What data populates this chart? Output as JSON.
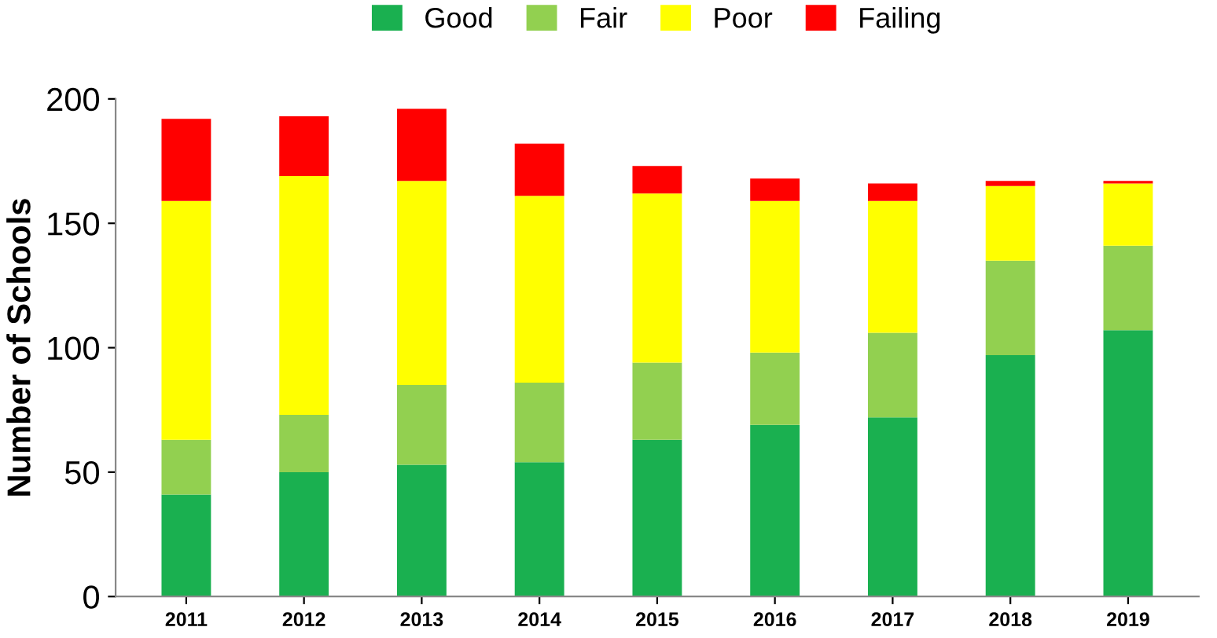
{
  "chart_data": {
    "type": "bar",
    "stacked": true,
    "ylabel": "Number of Schools",
    "categories": [
      "2011",
      "2012",
      "2013",
      "2014",
      "2015",
      "2016",
      "2017",
      "2018",
      "2019"
    ],
    "series": [
      {
        "name": "Good",
        "color": "#1ab050",
        "values": [
          41,
          50,
          53,
          54,
          63,
          69,
          72,
          97,
          107
        ]
      },
      {
        "name": "Fair",
        "color": "#92d050",
        "values": [
          22,
          23,
          32,
          32,
          31,
          29,
          34,
          38,
          34
        ]
      },
      {
        "name": "Poor",
        "color": "#ffff00",
        "values": [
          96,
          96,
          82,
          75,
          68,
          61,
          53,
          30,
          25
        ]
      },
      {
        "name": "Failing",
        "color": "#ff0000",
        "values": [
          33,
          24,
          29,
          21,
          11,
          9,
          7,
          2,
          1
        ]
      }
    ],
    "ylim": [
      0,
      200
    ],
    "yticks": [
      0,
      50,
      100,
      150,
      200
    ],
    "grid": false,
    "legend": "top"
  }
}
